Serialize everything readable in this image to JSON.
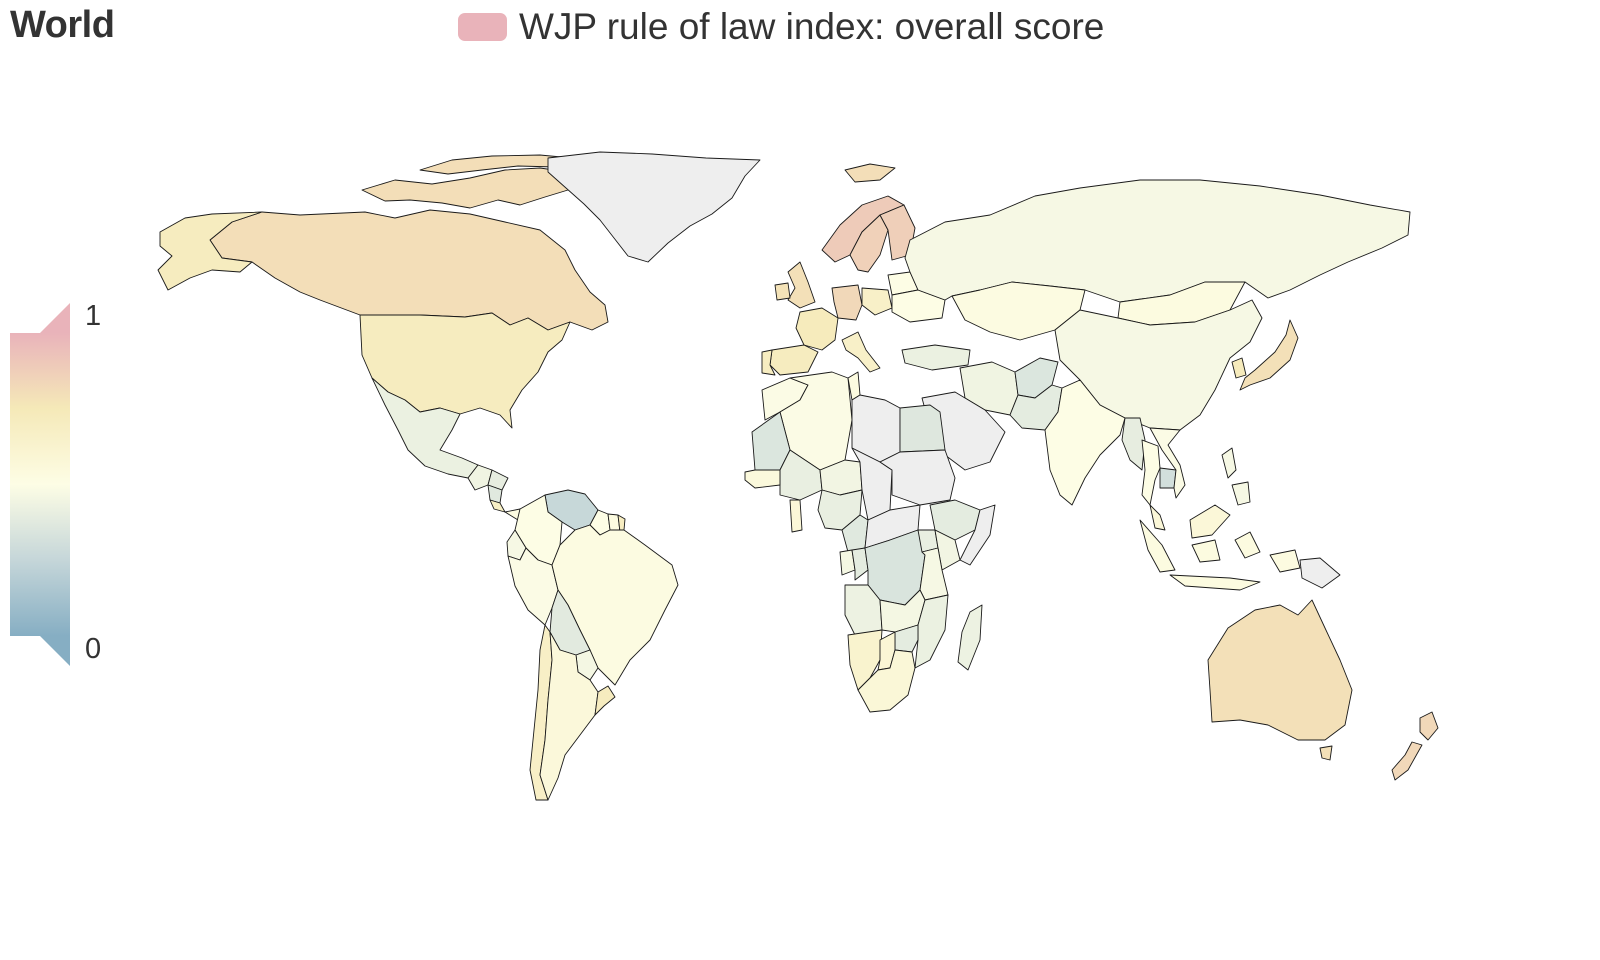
{
  "header": {
    "title": "World"
  },
  "legend": {
    "label": "WJP rule of law index: overall score",
    "swatch_color": "#e9b3ba"
  },
  "color_scale": {
    "max_label": "1",
    "min_label": "0",
    "min_value": 0,
    "max_value": 1,
    "stops": [
      "#86aec3",
      "#c5d6d9",
      "#fdfde5",
      "#f5e9b8",
      "#e9b3ba"
    ]
  },
  "map": {
    "no_data_color": "#eeeeee",
    "ocean_color": "#ffffff",
    "regions": [
      {
        "name": "Canada",
        "value": 0.8
      },
      {
        "name": "United States",
        "value": 0.71
      },
      {
        "name": "Mexico",
        "value": 0.42
      },
      {
        "name": "Greenland",
        "value": null
      },
      {
        "name": "Guatemala",
        "value": 0.44
      },
      {
        "name": "Honduras",
        "value": 0.4
      },
      {
        "name": "Nicaragua",
        "value": 0.37
      },
      {
        "name": "Costa Rica",
        "value": 0.68
      },
      {
        "name": "Panama",
        "value": 0.52
      },
      {
        "name": "Venezuela",
        "value": 0.26
      },
      {
        "name": "Colombia",
        "value": 0.5
      },
      {
        "name": "Guyana",
        "value": 0.5
      },
      {
        "name": "Suriname",
        "value": 0.53
      },
      {
        "name": "French Guiana",
        "value": 0.7
      },
      {
        "name": "Ecuador",
        "value": 0.47
      },
      {
        "name": "Peru",
        "value": 0.49
      },
      {
        "name": "Brazil",
        "value": 0.52
      },
      {
        "name": "Bolivia",
        "value": 0.38
      },
      {
        "name": "Paraguay",
        "value": 0.46
      },
      {
        "name": "Chile",
        "value": 0.67
      },
      {
        "name": "Argentina",
        "value": 0.56
      },
      {
        "name": "Uruguay",
        "value": 0.71
      },
      {
        "name": "Iceland",
        "value": 0.8
      },
      {
        "name": "Norway",
        "value": 0.89
      },
      {
        "name": "Sweden",
        "value": 0.86
      },
      {
        "name": "Finland",
        "value": 0.87
      },
      {
        "name": "United Kingdom",
        "value": 0.79
      },
      {
        "name": "Ireland",
        "value": 0.78
      },
      {
        "name": "France",
        "value": 0.73
      },
      {
        "name": "Spain",
        "value": 0.71
      },
      {
        "name": "Portugal",
        "value": 0.7
      },
      {
        "name": "Germany",
        "value": 0.83
      },
      {
        "name": "Poland",
        "value": 0.66
      },
      {
        "name": "Italy",
        "value": 0.66
      },
      {
        "name": "Ukraine",
        "value": 0.5
      },
      {
        "name": "Belarus",
        "value": 0.5
      },
      {
        "name": "Turkey",
        "value": 0.42
      },
      {
        "name": "Russia",
        "value": 0.47
      },
      {
        "name": "Kazakhstan",
        "value": 0.52
      },
      {
        "name": "Mongolia",
        "value": 0.53
      },
      {
        "name": "China",
        "value": 0.47
      },
      {
        "name": "Japan",
        "value": 0.79
      },
      {
        "name": "South Korea",
        "value": 0.73
      },
      {
        "name": "India",
        "value": 0.5
      },
      {
        "name": "Pakistan",
        "value": 0.39
      },
      {
        "name": "Afghanistan",
        "value": 0.35
      },
      {
        "name": "Iran",
        "value": 0.44
      },
      {
        "name": "Saudi Arabia",
        "value": null
      },
      {
        "name": "Myanmar",
        "value": 0.4
      },
      {
        "name": "Thailand",
        "value": 0.5
      },
      {
        "name": "Cambodia",
        "value": 0.31
      },
      {
        "name": "Vietnam",
        "value": 0.49
      },
      {
        "name": "Malaysia",
        "value": 0.57
      },
      {
        "name": "Indonesia",
        "value": 0.53
      },
      {
        "name": "Philippines",
        "value": 0.47
      },
      {
        "name": "Papua New Guinea",
        "value": null
      },
      {
        "name": "Australia",
        "value": 0.79
      },
      {
        "name": "New Zealand",
        "value": 0.83
      },
      {
        "name": "Morocco",
        "value": 0.49
      },
      {
        "name": "Algeria",
        "value": 0.49
      },
      {
        "name": "Tunisia",
        "value": 0.53
      },
      {
        "name": "Libya",
        "value": null
      },
      {
        "name": "Egypt",
        "value": 0.36
      },
      {
        "name": "Mauritania",
        "value": 0.35
      },
      {
        "name": "Mali",
        "value": 0.41
      },
      {
        "name": "Niger",
        "value": 0.45
      },
      {
        "name": "Chad",
        "value": null
      },
      {
        "name": "Sudan",
        "value": null
      },
      {
        "name": "Ethiopia",
        "value": 0.39
      },
      {
        "name": "Somalia",
        "value": null
      },
      {
        "name": "Nigeria",
        "value": 0.41
      },
      {
        "name": "Ghana",
        "value": 0.57
      },
      {
        "name": "Senegal",
        "value": 0.55
      },
      {
        "name": "Cameroon",
        "value": 0.37
      },
      {
        "name": "Central African Republic",
        "value": null
      },
      {
        "name": "Democratic Republic of Congo",
        "value": 0.34
      },
      {
        "name": "Republic of Congo",
        "value": 0.39
      },
      {
        "name": "Gabon",
        "value": 0.46
      },
      {
        "name": "Angola",
        "value": 0.43
      },
      {
        "name": "Kenya",
        "value": 0.45
      },
      {
        "name": "Tanzania",
        "value": 0.47
      },
      {
        "name": "Uganda",
        "value": 0.41
      },
      {
        "name": "Zambia",
        "value": 0.46
      },
      {
        "name": "Zimbabwe",
        "value": 0.39
      },
      {
        "name": "Mozambique",
        "value": 0.42
      },
      {
        "name": "Madagascar",
        "value": 0.43
      },
      {
        "name": "Namibia",
        "value": 0.63
      },
      {
        "name": "Botswana",
        "value": 0.59
      },
      {
        "name": "South Africa",
        "value": 0.58
      }
    ]
  }
}
